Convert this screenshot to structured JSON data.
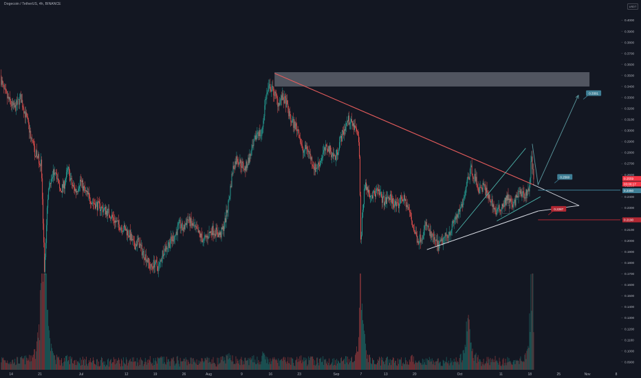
{
  "header": {
    "title": "Dogecoin / TetherUS, 4h, BINANCE",
    "currency": "USDT"
  },
  "chart_data": {
    "type": "candlestick",
    "title": "Dogecoin / TetherUS, 4h, BINANCE",
    "ylim": [
      0.083,
      0.411
    ],
    "y_ticks": [
      "0.4000",
      "0.3900",
      "0.3800",
      "0.3700",
      "0.3600",
      "0.3500",
      "0.3400",
      "0.3300",
      "0.3200",
      "0.3100",
      "0.3000",
      "0.2900",
      "0.2800",
      "0.2700",
      "0.2600",
      "0.2500",
      "0.2400",
      "0.2300",
      "0.2200",
      "0.2100",
      "0.2000",
      "0.1900",
      "0.1800",
      "0.1700",
      "0.1600",
      "0.1500",
      "0.1400",
      "0.1300",
      "0.1200",
      "0.1100",
      "0.1000",
      "0.0900"
    ],
    "x_ticks": [
      {
        "label": "14",
        "day": 0
      },
      {
        "label": "21",
        "day": 7
      },
      {
        "label": "Jul",
        "day": 17
      },
      {
        "label": "12",
        "day": 28
      },
      {
        "label": "19",
        "day": 35
      },
      {
        "label": "26",
        "day": 42
      },
      {
        "label": "Aug",
        "day": 48
      },
      {
        "label": "9",
        "day": 56
      },
      {
        "label": "16",
        "day": 63
      },
      {
        "label": "23",
        "day": 70
      },
      {
        "label": "Sep",
        "day": 79
      },
      {
        "label": "7",
        "day": 85
      },
      {
        "label": "13",
        "day": 91
      },
      {
        "label": "20",
        "day": 98
      },
      {
        "label": "Oct",
        "day": 109
      },
      {
        "label": "11",
        "day": 119
      },
      {
        "label": "18",
        "day": 126
      },
      {
        "label": "25",
        "day": 133
      },
      {
        "label": "Nov",
        "day": 140
      },
      {
        "label": "8",
        "day": 147
      }
    ],
    "x_range_days": [
      -2.7,
      148
    ],
    "price_path": [
      [
        -2.5,
        0.35
      ],
      [
        -1.5,
        0.335
      ],
      [
        0,
        0.325
      ],
      [
        1,
        0.32
      ],
      [
        2.5,
        0.33
      ],
      [
        4,
        0.31
      ],
      [
        5,
        0.295
      ],
      [
        6,
        0.28
      ],
      [
        7.5,
        0.27
      ],
      [
        8.3,
        0.17
      ],
      [
        9,
        0.24
      ],
      [
        10,
        0.26
      ],
      [
        11,
        0.265
      ],
      [
        12,
        0.245
      ],
      [
        13,
        0.25
      ],
      [
        14,
        0.265
      ],
      [
        15,
        0.25
      ],
      [
        16,
        0.245
      ],
      [
        17,
        0.255
      ],
      [
        18,
        0.245
      ],
      [
        20,
        0.235
      ],
      [
        22,
        0.23
      ],
      [
        24,
        0.225
      ],
      [
        26,
        0.215
      ],
      [
        28,
        0.21
      ],
      [
        29,
        0.205
      ],
      [
        30,
        0.195
      ],
      [
        31,
        0.2
      ],
      [
        32,
        0.19
      ],
      [
        33,
        0.185
      ],
      [
        34,
        0.175
      ],
      [
        35,
        0.18
      ],
      [
        36,
        0.175
      ],
      [
        37,
        0.19
      ],
      [
        38,
        0.195
      ],
      [
        39,
        0.2
      ],
      [
        40,
        0.205
      ],
      [
        41,
        0.215
      ],
      [
        42,
        0.21
      ],
      [
        43,
        0.22
      ],
      [
        44,
        0.215
      ],
      [
        45,
        0.21
      ],
      [
        46,
        0.205
      ],
      [
        47,
        0.2
      ],
      [
        48,
        0.205
      ],
      [
        49,
        0.21
      ],
      [
        50,
        0.208
      ],
      [
        51,
        0.205
      ],
      [
        52,
        0.215
      ],
      [
        53,
        0.235
      ],
      [
        54,
        0.265
      ],
      [
        55,
        0.275
      ],
      [
        56,
        0.27
      ],
      [
        57,
        0.265
      ],
      [
        58,
        0.275
      ],
      [
        59,
        0.285
      ],
      [
        60,
        0.3
      ],
      [
        61,
        0.295
      ],
      [
        62,
        0.33
      ],
      [
        63,
        0.34
      ],
      [
        64,
        0.335
      ],
      [
        65,
        0.325
      ],
      [
        66,
        0.33
      ],
      [
        67,
        0.325
      ],
      [
        68,
        0.31
      ],
      [
        69,
        0.305
      ],
      [
        70,
        0.3
      ],
      [
        71,
        0.28
      ],
      [
        72,
        0.285
      ],
      [
        73,
        0.275
      ],
      [
        74,
        0.265
      ],
      [
        75,
        0.27
      ],
      [
        76,
        0.28
      ],
      [
        77,
        0.285
      ],
      [
        78,
        0.28
      ],
      [
        79,
        0.275
      ],
      [
        80,
        0.29
      ],
      [
        81,
        0.3
      ],
      [
        82,
        0.31
      ],
      [
        83,
        0.305
      ],
      [
        84,
        0.3
      ],
      [
        84.7,
        0.29
      ],
      [
        85.1,
        0.2
      ],
      [
        86,
        0.25
      ],
      [
        87,
        0.245
      ],
      [
        88,
        0.24
      ],
      [
        89,
        0.245
      ],
      [
        90,
        0.24
      ],
      [
        91,
        0.235
      ],
      [
        92,
        0.24
      ],
      [
        93,
        0.235
      ],
      [
        94,
        0.23
      ],
      [
        95,
        0.24
      ],
      [
        96,
        0.235
      ],
      [
        97,
        0.225
      ],
      [
        98,
        0.21
      ],
      [
        99,
        0.2
      ],
      [
        100,
        0.205
      ],
      [
        101,
        0.215
      ],
      [
        102,
        0.205
      ],
      [
        103,
        0.2
      ],
      [
        104,
        0.195
      ],
      [
        105,
        0.2
      ],
      [
        106,
        0.205
      ],
      [
        107,
        0.21
      ],
      [
        108,
        0.22
      ],
      [
        109,
        0.225
      ],
      [
        110,
        0.235
      ],
      [
        111,
        0.255
      ],
      [
        112,
        0.265
      ],
      [
        113,
        0.255
      ],
      [
        114,
        0.245
      ],
      [
        115,
        0.25
      ],
      [
        116,
        0.24
      ],
      [
        117,
        0.235
      ],
      [
        118,
        0.225
      ],
      [
        119,
        0.23
      ],
      [
        120,
        0.235
      ],
      [
        121,
        0.24
      ],
      [
        122,
        0.23
      ],
      [
        123,
        0.24
      ],
      [
        124,
        0.245
      ],
      [
        125,
        0.24
      ],
      [
        126,
        0.25
      ],
      [
        126.6,
        0.275
      ],
      [
        127,
        0.258
      ]
    ],
    "events": [
      {
        "day": 7.5,
        "size": 9
      },
      {
        "day": 8.3,
        "size": 8
      },
      {
        "day": 85,
        "size": 8
      },
      {
        "day": 111,
        "size": 5
      },
      {
        "day": 126.6,
        "size": 10
      }
    ],
    "drawings": {
      "resistance_zone": {
        "price_top": 0.353,
        "price_bottom": 0.34,
        "day_start": 64,
        "day_end": 140.5,
        "color": "#5d606b"
      },
      "descending_trendline": {
        "points": [
          [
            64,
            0.352
          ],
          [
            126.8,
            0.251
          ]
        ],
        "color": "#e65c5c"
      },
      "rising_trendline": {
        "points": [
          [
            101,
            0.192
          ],
          [
            128,
            0.227
          ]
        ],
        "color": "#e0e3eb"
      },
      "triangle_edges": [
        {
          "points": [
            [
              126.8,
              0.251
            ],
            [
              138,
              0.232
            ]
          ],
          "color": "#e0e3eb"
        },
        {
          "points": [
            [
              138,
              0.232
            ],
            [
              128,
              0.227
            ]
          ],
          "color": "#e0e3eb"
        }
      ],
      "rising_channel": {
        "color": "#4db6ac",
        "lines": [
          [
            [
              108,
              0.207
            ],
            [
              125,
              0.284
            ]
          ],
          [
            [
              118,
              0.218
            ],
            [
              128.6,
              0.24
            ]
          ]
        ]
      },
      "projected_path": {
        "color": "#5b9aa0",
        "points": [
          [
            126.6,
            0.288
          ],
          [
            128,
            0.251
          ],
          [
            137.8,
            0.332
          ]
        ]
      },
      "support_line": {
        "price": 0.219,
        "day_start": 128,
        "day_end": 148,
        "color": "#b22833"
      },
      "level_line": {
        "price": 0.246,
        "day_start": 128,
        "day_end": 148,
        "color": "#3f7f96"
      }
    },
    "price_labels": [
      {
        "text": "0.3301",
        "price": 0.334,
        "day": 140,
        "color": "#3f7f96"
      },
      {
        "text": "0.2560",
        "price": 0.258,
        "day": 133,
        "color": "#3f7f96"
      },
      {
        "text": "0.2287",
        "price": 0.229,
        "day": 131.5,
        "color": "#b22833"
      }
    ],
    "axis_badges": [
      {
        "text": "0.2559",
        "price": 0.2565,
        "color": "#f23645"
      },
      {
        "text": "03:06:17",
        "price": 0.2515,
        "color": "#f23645"
      },
      {
        "text": "0.2450",
        "price": 0.2455,
        "color": "#3f7f96"
      },
      {
        "text": "0.2190",
        "price": 0.219,
        "color": "#b22833"
      }
    ]
  }
}
